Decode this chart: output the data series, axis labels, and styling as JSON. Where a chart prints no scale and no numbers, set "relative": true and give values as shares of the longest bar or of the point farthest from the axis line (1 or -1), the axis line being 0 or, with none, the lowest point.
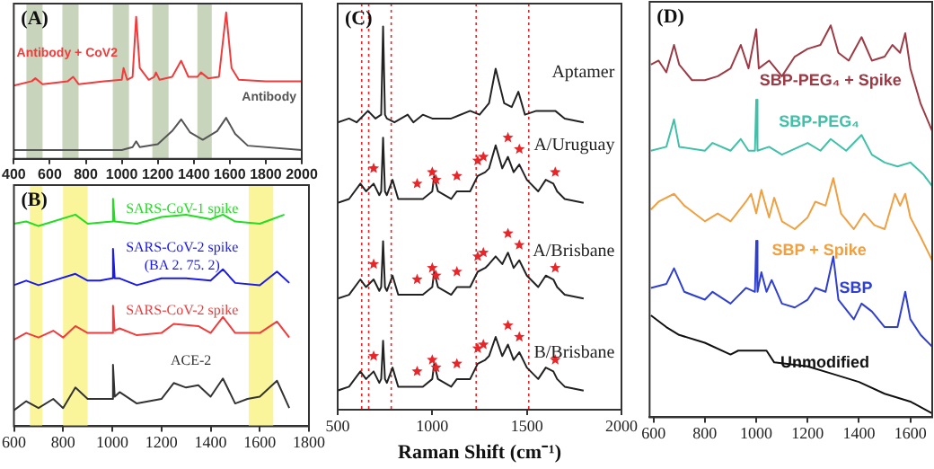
{
  "chart_data": [
    {
      "type": "line",
      "title": "(A)",
      "relative": true,
      "xlim": [
        400,
        2000
      ],
      "xticks": [
        400,
        600,
        800,
        1000,
        1200,
        1400,
        1600,
        1800,
        2000
      ],
      "bands": [
        {
          "axis": "x",
          "from": 470,
          "to": 560,
          "color": "#c8d5bc"
        },
        {
          "axis": "x",
          "from": 670,
          "to": 760,
          "color": "#c8d5bc"
        },
        {
          "axis": "x",
          "from": 950,
          "to": 1040,
          "color": "#c8d5bc"
        },
        {
          "axis": "x",
          "from": 1170,
          "to": 1260,
          "color": "#c8d5bc"
        },
        {
          "axis": "x",
          "from": 1420,
          "to": 1500,
          "color": "#c8d5bc"
        }
      ],
      "series": [
        {
          "name": "Antibody + CoV2",
          "color": "#f03c3c",
          "x": [
            400,
            500,
            520,
            560,
            700,
            730,
            760,
            900,
            1000,
            1010,
            1030,
            1060,
            1080,
            1100,
            1150,
            1180,
            1190,
            1210,
            1280,
            1330,
            1370,
            1420,
            1440,
            1480,
            1540,
            1580,
            1610,
            1650,
            1800,
            2000
          ],
          "values": [
            0.5,
            0.53,
            0.55,
            0.51,
            0.53,
            0.56,
            0.51,
            0.53,
            0.54,
            0.62,
            0.54,
            0.56,
            0.97,
            0.62,
            0.54,
            0.56,
            0.59,
            0.54,
            0.56,
            0.67,
            0.56,
            0.56,
            0.59,
            0.55,
            0.56,
            1,
            0.62,
            0.54,
            0.53,
            0.53
          ]
        },
        {
          "name": "Antibody",
          "color": "#555555",
          "x": [
            400,
            700,
            900,
            1000,
            1060,
            1080,
            1100,
            1200,
            1280,
            1330,
            1380,
            1450,
            1530,
            1580,
            1630,
            1700,
            2000
          ],
          "values": [
            0.06,
            0.06,
            0.06,
            0.06,
            0.08,
            0.12,
            0.08,
            0.1,
            0.19,
            0.27,
            0.18,
            0.13,
            0.19,
            0.28,
            0.17,
            0.09,
            0.06
          ]
        }
      ]
    },
    {
      "type": "line",
      "title": "(B)",
      "relative": true,
      "xlim": [
        600,
        1800
      ],
      "xticks": [
        600,
        800,
        1000,
        1200,
        1400,
        1600,
        1800
      ],
      "bands": [
        {
          "axis": "x",
          "from": 665,
          "to": 715,
          "color": "#faf59a"
        },
        {
          "axis": "x",
          "from": 800,
          "to": 900,
          "color": "#faf59a"
        },
        {
          "axis": "x",
          "from": 1555,
          "to": 1655,
          "color": "#faf59a"
        }
      ],
      "series": [
        {
          "name": "SARS-CoV-1 spike",
          "color": "#22dd22",
          "x": [
            600,
            650,
            700,
            760,
            850,
            900,
            1000,
            1003,
            1010,
            1100,
            1200,
            1300,
            1400,
            1450,
            1500,
            1600,
            1650,
            1700
          ],
          "values": [
            0.89,
            0.9,
            0.88,
            0.9,
            0.93,
            0.89,
            0.9,
            1,
            0.9,
            0.89,
            0.92,
            0.93,
            0.91,
            0.93,
            0.9,
            0.89,
            0.91,
            0.93
          ]
        },
        {
          "name": "SARS-CoV-2 spike (BA 2. 75. 2)",
          "color": "#1a1aee",
          "x": [
            600,
            650,
            700,
            760,
            850,
            900,
            950,
            1000,
            1003,
            1010,
            1030,
            1100,
            1200,
            1300,
            1400,
            1450,
            1500,
            1600,
            1670,
            1720
          ],
          "values": [
            0.62,
            0.64,
            0.62,
            0.64,
            0.67,
            0.64,
            0.64,
            0.65,
            0.78,
            0.65,
            0.65,
            0.62,
            0.65,
            0.65,
            0.64,
            0.69,
            0.63,
            0.62,
            0.68,
            0.63
          ]
        },
        {
          "name": "SARS-CoV-2 spike",
          "color": "#f03c3c",
          "x": [
            600,
            650,
            700,
            760,
            800,
            850,
            900,
            1000,
            1003,
            1010,
            1030,
            1100,
            1200,
            1250,
            1350,
            1400,
            1450,
            1500,
            1600,
            1670,
            1720
          ],
          "values": [
            0.38,
            0.41,
            0.39,
            0.42,
            0.39,
            0.44,
            0.41,
            0.41,
            0.53,
            0.42,
            0.43,
            0.4,
            0.41,
            0.45,
            0.44,
            0.41,
            0.48,
            0.41,
            0.41,
            0.46,
            0.39
          ]
        },
        {
          "name": "ACE-2",
          "color": "#333333",
          "x": [
            600,
            650,
            700,
            760,
            800,
            850,
            900,
            1000,
            1003,
            1010,
            1030,
            1100,
            1200,
            1250,
            1300,
            1350,
            1400,
            1450,
            1500,
            1550,
            1600,
            1670,
            1720
          ],
          "values": [
            0.07,
            0.11,
            0.08,
            0.12,
            0.08,
            0.17,
            0.12,
            0.12,
            0.27,
            0.13,
            0.15,
            0.1,
            0.12,
            0.19,
            0.17,
            0.18,
            0.13,
            0.21,
            0.1,
            0.12,
            0.13,
            0.2,
            0.08
          ]
        }
      ]
    },
    {
      "type": "line",
      "title": "(C)",
      "xlabel": "Raman Shift (cm⁻¹)",
      "relative": true,
      "xlim": [
        500,
        2000
      ],
      "xticks": [
        500,
        1000,
        1500,
        2000
      ],
      "ref_lines": [
        {
          "axis": "x",
          "value": 627,
          "color": "#e8262a",
          "line_style": "dotted"
        },
        {
          "axis": "x",
          "value": 664,
          "color": "#e8262a",
          "line_style": "dotted"
        },
        {
          "axis": "x",
          "value": 783,
          "color": "#e8262a",
          "line_style": "dotted"
        },
        {
          "axis": "x",
          "value": 1232,
          "color": "#e8262a",
          "line_style": "dotted"
        },
        {
          "axis": "x",
          "value": 1510,
          "color": "#e8262a",
          "line_style": "dotted"
        }
      ],
      "series": [
        {
          "name": "Aptamer",
          "color": "#222222",
          "x": [
            500,
            560,
            600,
            660,
            700,
            730,
            740,
            750,
            760,
            800,
            870,
            900,
            950,
            1000,
            1100,
            1200,
            1250,
            1300,
            1335,
            1380,
            1420,
            1455,
            1490,
            1550,
            1600,
            1650,
            1700,
            1800
          ],
          "values": [
            0.75,
            0.76,
            0.75,
            0.78,
            0.76,
            0.77,
            1,
            0.77,
            0.76,
            0.75,
            0.77,
            0.75,
            0.77,
            0.76,
            0.76,
            0.78,
            0.77,
            0.8,
            0.89,
            0.8,
            0.79,
            0.83,
            0.77,
            0.78,
            0.78,
            0.78,
            0.76,
            0.75
          ]
        },
        {
          "name": "A/Uruguay",
          "color": "#222222",
          "x": [
            500,
            560,
            620,
            650,
            690,
            720,
            730,
            740,
            750,
            760,
            790,
            820,
            900,
            950,
            1000,
            1010,
            1030,
            1100,
            1130,
            1200,
            1240,
            1280,
            1300,
            1335,
            1370,
            1400,
            1430,
            1460,
            1500,
            1560,
            1600,
            1640,
            1660,
            1700,
            1800
          ],
          "values": [
            0.54,
            0.55,
            0.59,
            0.57,
            0.59,
            0.56,
            0.57,
            0.71,
            0.57,
            0.56,
            0.6,
            0.55,
            0.55,
            0.55,
            0.57,
            0.61,
            0.57,
            0.55,
            0.57,
            0.57,
            0.61,
            0.62,
            0.63,
            0.69,
            0.63,
            0.66,
            0.62,
            0.64,
            0.6,
            0.57,
            0.6,
            0.59,
            0.57,
            0.55,
            0.54
          ]
        },
        {
          "name": "A/Brisbane",
          "color": "#222222",
          "x": [
            500,
            560,
            620,
            650,
            690,
            720,
            730,
            740,
            750,
            760,
            790,
            820,
            900,
            950,
            1000,
            1010,
            1030,
            1100,
            1130,
            1200,
            1240,
            1280,
            1300,
            1335,
            1370,
            1400,
            1430,
            1460,
            1500,
            1560,
            1600,
            1640,
            1660,
            1700,
            1800
          ],
          "values": [
            0.29,
            0.3,
            0.34,
            0.32,
            0.34,
            0.31,
            0.32,
            0.44,
            0.32,
            0.31,
            0.35,
            0.3,
            0.3,
            0.3,
            0.32,
            0.36,
            0.32,
            0.3,
            0.32,
            0.32,
            0.36,
            0.37,
            0.38,
            0.4,
            0.38,
            0.41,
            0.37,
            0.39,
            0.35,
            0.32,
            0.35,
            0.34,
            0.32,
            0.3,
            0.29
          ]
        },
        {
          "name": "B/Brisbane",
          "color": "#222222",
          "x": [
            500,
            560,
            620,
            650,
            690,
            720,
            730,
            740,
            750,
            760,
            790,
            820,
            900,
            950,
            1000,
            1010,
            1030,
            1100,
            1130,
            1200,
            1240,
            1280,
            1300,
            1335,
            1370,
            1400,
            1430,
            1460,
            1500,
            1560,
            1600,
            1640,
            1660,
            1700,
            1800
          ],
          "values": [
            0.05,
            0.06,
            0.1,
            0.08,
            0.1,
            0.07,
            0.08,
            0.18,
            0.08,
            0.07,
            0.11,
            0.06,
            0.06,
            0.06,
            0.08,
            0.12,
            0.08,
            0.06,
            0.08,
            0.08,
            0.12,
            0.13,
            0.14,
            0.19,
            0.14,
            0.17,
            0.13,
            0.15,
            0.11,
            0.08,
            0.11,
            0.1,
            0.08,
            0.06,
            0.05
          ]
        },
        {
          "type": "scatter",
          "marker": "star",
          "color": "#e8262a",
          "x": [
            690,
            920,
            1000,
            1020,
            1130,
            1240,
            1270,
            1400,
            1460,
            1650
          ],
          "values": [
            0.63,
            0.59,
            0.62,
            0.6,
            0.61,
            0.65,
            0.66,
            0.71,
            0.68,
            0.62
          ]
        },
        {
          "type": "scatter",
          "marker": "star",
          "color": "#e8262a",
          "x": [
            690,
            920,
            1000,
            1020,
            1130,
            1240,
            1270,
            1400,
            1460,
            1650
          ],
          "values": [
            0.38,
            0.34,
            0.37,
            0.35,
            0.36,
            0.4,
            0.41,
            0.46,
            0.43,
            0.37
          ]
        },
        {
          "type": "scatter",
          "marker": "star",
          "color": "#e8262a",
          "x": [
            690,
            920,
            1000,
            1020,
            1130,
            1240,
            1270,
            1400,
            1460,
            1650
          ],
          "values": [
            0.14,
            0.1,
            0.13,
            0.11,
            0.12,
            0.16,
            0.17,
            0.22,
            0.19,
            0.13
          ]
        }
      ]
    },
    {
      "type": "line",
      "title": "(D)",
      "relative": true,
      "xlim": [
        585,
        1685
      ],
      "xticks": [
        600,
        800,
        1000,
        1200,
        1400,
        1600
      ],
      "series": [
        {
          "name": "SBP-PEG₄ + Spike",
          "color": "#9c3b45",
          "x": [
            590,
            620,
            650,
            680,
            700,
            750,
            800,
            850,
            900,
            940,
            970,
            1000,
            1010,
            1050,
            1100,
            1150,
            1200,
            1250,
            1290,
            1320,
            1360,
            1410,
            1450,
            1500,
            1530,
            1560,
            1580,
            1600,
            1640,
            1685
          ],
          "values": [
            0.9,
            0.91,
            0.88,
            0.95,
            0.9,
            0.86,
            0.86,
            0.87,
            0.89,
            0.95,
            0.89,
            0.99,
            0.89,
            0.91,
            0.87,
            0.92,
            0.94,
            0.95,
            1,
            0.93,
            0.91,
            0.97,
            0.91,
            0.92,
            0.95,
            0.93,
            0.98,
            0.89,
            0.8,
            0.73
          ]
        },
        {
          "name": "SBP-PEG₄",
          "color": "#40c0a8",
          "x": [
            590,
            650,
            680,
            700,
            800,
            830,
            900,
            940,
            970,
            995,
            1000,
            1005,
            1050,
            1100,
            1200,
            1250,
            1290,
            1350,
            1410,
            1450,
            1500,
            1550,
            1600,
            1650,
            1685
          ],
          "values": [
            0.68,
            0.69,
            0.76,
            0.69,
            0.68,
            0.7,
            0.68,
            0.71,
            0.68,
            0.68,
            0.81,
            0.68,
            0.69,
            0.67,
            0.7,
            0.68,
            0.71,
            0.68,
            0.72,
            0.67,
            0.65,
            0.64,
            0.65,
            0.62,
            0.59
          ]
        },
        {
          "name": "SBP + Spike",
          "color": "#f0a040",
          "x": [
            590,
            620,
            680,
            720,
            800,
            850,
            900,
            960,
            980,
            1000,
            1020,
            1050,
            1070,
            1100,
            1150,
            1200,
            1230,
            1270,
            1300,
            1330,
            1380,
            1420,
            1460,
            1500,
            1540,
            1560,
            1580,
            1600,
            1640,
            1685
          ],
          "values": [
            0.53,
            0.55,
            0.57,
            0.54,
            0.5,
            0.52,
            0.5,
            0.55,
            0.57,
            0.52,
            0.58,
            0.51,
            0.56,
            0.5,
            0.48,
            0.51,
            0.55,
            0.54,
            0.61,
            0.52,
            0.48,
            0.52,
            0.49,
            0.48,
            0.57,
            0.54,
            0.57,
            0.51,
            0.46,
            0.4
          ]
        },
        {
          "name": "SBP",
          "color": "#2f3fcf",
          "x": [
            590,
            650,
            680,
            720,
            800,
            830,
            900,
            960,
            995,
            1000,
            1005,
            1020,
            1040,
            1060,
            1100,
            1150,
            1200,
            1230,
            1270,
            1300,
            1320,
            1380,
            1410,
            1450,
            1500,
            1550,
            1580,
            1600,
            1640,
            1685
          ],
          "values": [
            0.33,
            0.34,
            0.38,
            0.32,
            0.3,
            0.32,
            0.29,
            0.33,
            0.32,
            0.45,
            0.32,
            0.37,
            0.32,
            0.35,
            0.29,
            0.28,
            0.3,
            0.33,
            0.32,
            0.41,
            0.3,
            0.25,
            0.29,
            0.27,
            0.23,
            0.23,
            0.32,
            0.25,
            0.21,
            0.18
          ]
        },
        {
          "name": "Unmodified",
          "color": "#111111",
          "x": [
            590,
            650,
            700,
            800,
            900,
            930,
            960,
            1000,
            1040,
            1070,
            1200,
            1300,
            1400,
            1500,
            1600,
            1685
          ],
          "values": [
            0.26,
            0.23,
            0.21,
            0.19,
            0.16,
            0.17,
            0.17,
            0.17,
            0.17,
            0.14,
            0.13,
            0.11,
            0.09,
            0.06,
            0.04,
            0.01
          ]
        }
      ]
    }
  ]
}
